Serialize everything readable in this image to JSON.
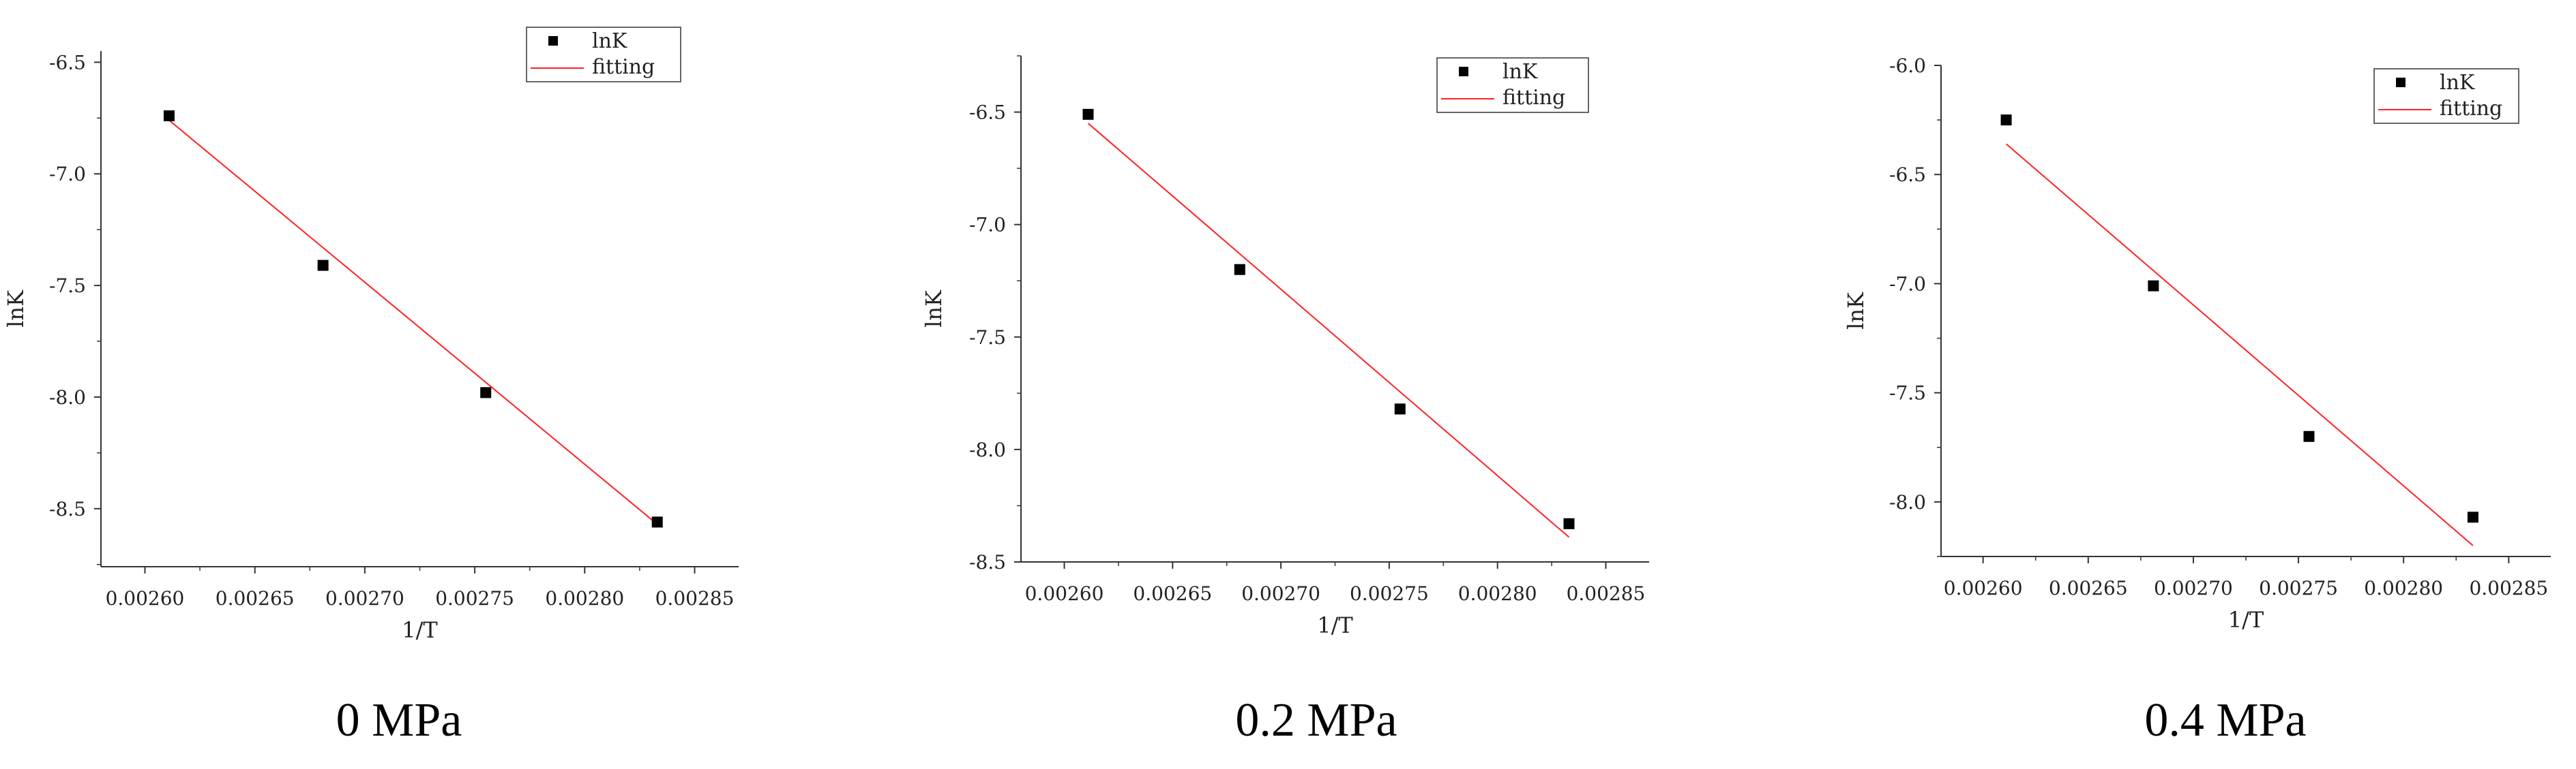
{
  "colors": {
    "fit": "#ff2222",
    "point": "#000000",
    "axis": "#333333"
  },
  "chart_data": [
    {
      "type": "scatter",
      "title": "0 MPa",
      "xlabel": "1/T",
      "ylabel": "lnK",
      "xlim": [
        0.00258,
        0.00287
      ],
      "ylim": [
        -8.76,
        -6.45
      ],
      "x_ticks": [
        "0.00260",
        "0.00265",
        "0.00270",
        "0.00275",
        "0.00280",
        "0.00285"
      ],
      "x_tick_values": [
        0.0026,
        0.00265,
        0.0027,
        0.00275,
        0.0028,
        0.00285
      ],
      "y_ticks": [
        "-6.5",
        "-7.0",
        "-7.5",
        "-8.0",
        "-8.5"
      ],
      "y_tick_values": [
        -6.5,
        -7.0,
        -7.5,
        -8.0,
        -8.5
      ],
      "series": [
        {
          "name": "lnK",
          "kind": "points",
          "x": [
            0.002611,
            0.002681,
            0.002755,
            0.002833
          ],
          "y": [
            -6.74,
            -7.41,
            -7.98,
            -8.56
          ]
        },
        {
          "name": "fitting",
          "kind": "line",
          "x": [
            0.002611,
            0.002833
          ],
          "y": [
            -6.76,
            -8.57
          ]
        }
      ],
      "legend": {
        "position": "top-right",
        "entries": [
          "lnK",
          "fitting"
        ]
      }
    },
    {
      "type": "scatter",
      "title": "0.2 MPa",
      "xlabel": "1/T",
      "ylabel": "lnK",
      "xlim": [
        0.00258,
        0.00287
      ],
      "ylim": [
        -8.5,
        -6.25
      ],
      "x_ticks": [
        "0.00260",
        "0.00265",
        "0.00270",
        "0.00275",
        "0.00280",
        "0.00285"
      ],
      "x_tick_values": [
        0.0026,
        0.00265,
        0.0027,
        0.00275,
        0.0028,
        0.00285
      ],
      "y_ticks": [
        "-6.5",
        "-7.0",
        "-7.5",
        "-8.0",
        "-8.5"
      ],
      "y_tick_values": [
        -6.5,
        -7.0,
        -7.5,
        -8.0,
        -8.5
      ],
      "series": [
        {
          "name": "lnK",
          "kind": "points",
          "x": [
            0.002611,
            0.002681,
            0.002755,
            0.002833
          ],
          "y": [
            -6.51,
            -7.2,
            -7.82,
            -8.33
          ]
        },
        {
          "name": "fitting",
          "kind": "line",
          "x": [
            0.002611,
            0.002833
          ],
          "y": [
            -6.55,
            -8.39
          ]
        }
      ],
      "legend": {
        "position": "top-right",
        "entries": [
          "lnK",
          "fitting"
        ]
      }
    },
    {
      "type": "scatter",
      "title": "0.4 MPa",
      "xlabel": "1/T",
      "ylabel": "lnK",
      "xlim": [
        0.00258,
        0.00287
      ],
      "ylim": [
        -8.25,
        -6.0
      ],
      "x_ticks": [
        "0.00260",
        "0.00265",
        "0.00270",
        "0.00275",
        "0.00280",
        "0.00285"
      ],
      "x_tick_values": [
        0.0026,
        0.00265,
        0.0027,
        0.00275,
        0.0028,
        0.00285
      ],
      "y_ticks": [
        "-6.0",
        "-6.5",
        "-7.0",
        "-7.5",
        "-8.0"
      ],
      "y_tick_values": [
        -6.0,
        -6.5,
        -7.0,
        -7.5,
        -8.0
      ],
      "series": [
        {
          "name": "lnK",
          "kind": "points",
          "x": [
            0.002611,
            0.002681,
            0.002755,
            0.002833
          ],
          "y": [
            -6.25,
            -7.01,
            -7.7,
            -8.07
          ]
        },
        {
          "name": "fitting",
          "kind": "line",
          "x": [
            0.002611,
            0.002833
          ],
          "y": [
            -6.36,
            -8.2
          ]
        }
      ],
      "legend": {
        "position": "top-right",
        "entries": [
          "lnK",
          "fitting"
        ]
      }
    }
  ]
}
